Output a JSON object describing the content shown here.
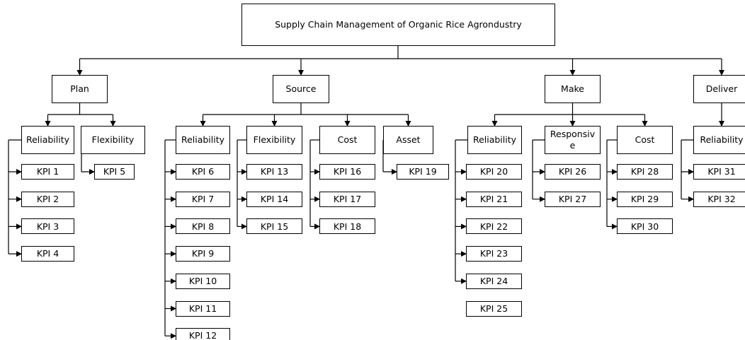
{
  "title": "Supply Chain Management of Organic Rice Agrondustry",
  "processes": [
    {
      "label": "Plan",
      "attributes": [
        {
          "label": "Reliability",
          "kpis": [
            "KPI 1",
            "KPI 2",
            "KPI 3",
            "KPI 4"
          ]
        },
        {
          "label": "Flexibility",
          "kpis": [
            "KPI 5"
          ]
        }
      ]
    },
    {
      "label": "Source",
      "attributes": [
        {
          "label": "Reliability",
          "kpis": [
            "KPI 6",
            "KPI 7",
            "KPI 8",
            "KPI 9",
            "KPI 10",
            "KPI 11",
            "KPI 12"
          ]
        },
        {
          "label": "Flexibility",
          "kpis": [
            "KPI 13",
            "KPI 14",
            "KPI 15"
          ]
        },
        {
          "label": "Cost",
          "kpis": [
            "KPI 16",
            "KPI 17",
            "KPI 18"
          ]
        },
        {
          "label": "Asset",
          "kpis": [
            "KPI 19"
          ]
        }
      ]
    },
    {
      "label": "Make",
      "attributes": [
        {
          "label": "Reliability",
          "kpis": [
            "KPI 20",
            "KPI 21",
            "KPI 22",
            "KPI 23",
            "KPI 24",
            "KPI 25"
          ]
        },
        {
          "label": "Responsive",
          "kpis": [
            "KPI 26",
            "KPI 27"
          ]
        },
        {
          "label": "Cost",
          "kpis": [
            "KPI 28",
            "KPI 29",
            "KPI 30"
          ]
        }
      ]
    },
    {
      "label": "Deliver",
      "attributes": [
        {
          "label": "Reliability",
          "kpis": [
            "KPI 31",
            "KPI 32"
          ]
        }
      ]
    }
  ]
}
